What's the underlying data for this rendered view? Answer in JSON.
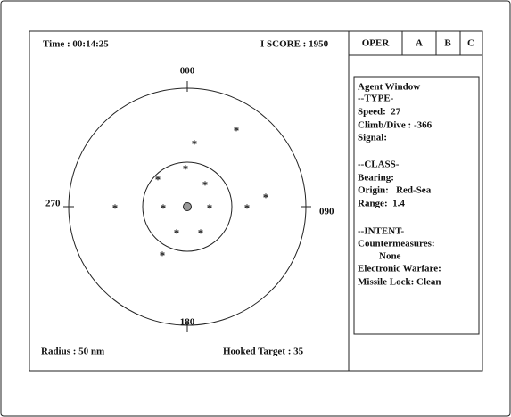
{
  "header": {
    "time": "Time : 00:14:25",
    "score": "I SCORE : 1950"
  },
  "tabs": [
    "OPER",
    "A",
    "B",
    "C"
  ],
  "radar": {
    "bearings": [
      "000",
      "090",
      "180",
      "270"
    ],
    "contacts": [
      "*",
      "*",
      "*",
      "*",
      "*",
      "*",
      "*",
      "*",
      "*",
      "*",
      "*",
      "*",
      "*"
    ],
    "radius": "Radius : 50 nm",
    "hooked": "Hooked Target : 35"
  },
  "agent_window": {
    "title": "Agent Window",
    "lines": [
      "--TYPE-",
      "Speed:  27",
      "Climb/Dive : -366",
      "Signal:",
      "--CLASS-",
      "Bearing:",
      "Origin:   Red-Sea",
      "Range:  1.4",
      "--INTENT-",
      "Countermeasures:",
      "None",
      "Electronic Warfare:",
      "Missile Lock: Clean"
    ]
  }
}
